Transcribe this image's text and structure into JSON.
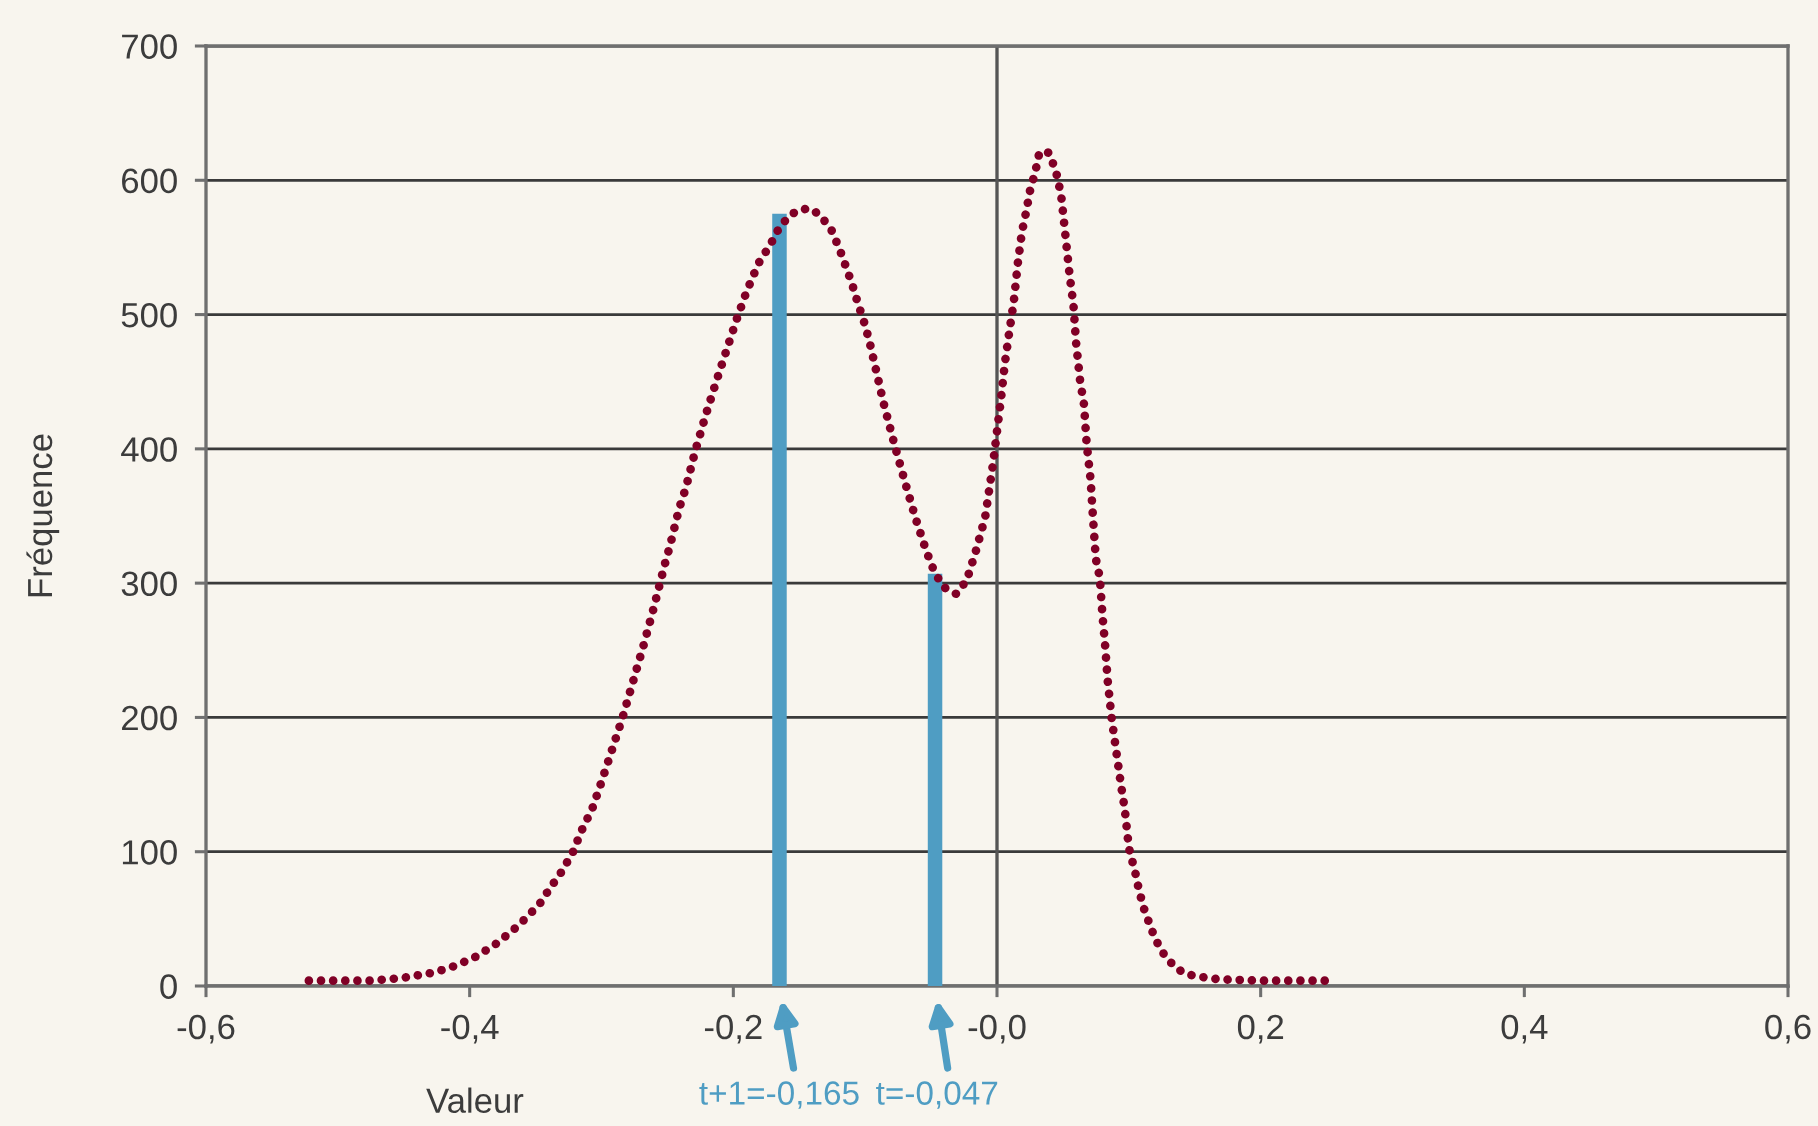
{
  "chart_data": {
    "type": "line",
    "xlabel": "Valeur",
    "ylabel": "Fréquence",
    "xlim": [
      -0.6,
      0.6
    ],
    "xticks": [
      {
        "value": -0.6,
        "label": "-0,6"
      },
      {
        "value": -0.4,
        "label": "-0,4"
      },
      {
        "value": -0.2,
        "label": "-0,2"
      },
      {
        "value": 0,
        "label": "-0,0"
      },
      {
        "value": 0.2,
        "label": "0,2"
      },
      {
        "value": 0.4,
        "label": "0,4"
      },
      {
        "value": 0.6,
        "label": "0,6"
      }
    ],
    "ylim": [
      0,
      700
    ],
    "yticks": [
      0,
      100,
      200,
      300,
      400,
      500,
      600,
      700
    ],
    "grid": "y",
    "ref_lines": [
      {
        "axis": "x",
        "value": 0,
        "color": "#555555"
      }
    ],
    "series": [
      {
        "type": "bar",
        "color": "#4f9dc3",
        "x": [
          -0.165,
          -0.047
        ],
        "values": [
          575,
          307
        ]
      },
      {
        "color": "#800026",
        "line_style": "dotted",
        "x": [
          -0.522,
          -0.474,
          -0.451,
          -0.427,
          -0.411,
          -0.395,
          -0.379,
          -0.363,
          -0.347,
          -0.339,
          -0.331,
          -0.322,
          -0.315,
          -0.307,
          -0.3,
          -0.292,
          -0.284,
          -0.276,
          -0.268,
          -0.26,
          -0.252,
          -0.248,
          -0.241,
          -0.236,
          -0.229,
          -0.221,
          -0.213,
          -0.205,
          -0.198,
          -0.19,
          -0.181,
          -0.172,
          -0.165,
          -0.157,
          -0.15,
          -0.142,
          -0.134,
          -0.125,
          -0.118,
          -0.11,
          -0.106,
          -0.101,
          -0.097,
          -0.093,
          -0.086,
          -0.078,
          -0.07,
          -0.062,
          -0.054,
          -0.047,
          -0.039,
          -0.031,
          -0.023,
          -0.016,
          -0.009,
          -0.003,
          0.003,
          0.006,
          0.009,
          0.011,
          0.013,
          0.016,
          0.019,
          0.022,
          0.025,
          0.029,
          0.032,
          0.036,
          0.04,
          0.046,
          0.049,
          0.052,
          0.055,
          0.058,
          0.06,
          0.063,
          0.066,
          0.068,
          0.071,
          0.073,
          0.075,
          0.078,
          0.08,
          0.082,
          0.084,
          0.087,
          0.09,
          0.094,
          0.097,
          0.1,
          0.105,
          0.108,
          0.112,
          0.12,
          0.127,
          0.135,
          0.143,
          0.153,
          0.168,
          0.198,
          0.255
        ],
        "values": [
          4,
          4,
          6,
          10,
          15,
          22,
          32,
          45,
          61,
          73,
          84,
          99,
          116,
          132,
          152,
          176,
          200,
          227,
          254,
          283,
          314,
          328,
          356,
          371,
          398,
          425,
          450,
          474,
          495,
          517,
          538,
          552,
          565,
          574,
          578,
          579,
          574,
          562,
          545,
          523,
          510,
          495,
          481,
          464,
          434,
          404,
          376,
          349,
          325,
          307,
          296,
          292,
          302,
          324,
          349,
          389,
          437,
          464,
          485,
          498,
          512,
          540,
          562,
          576,
          592,
          606,
          620,
          622,
          620,
          602,
          586,
          558,
          530,
          507,
          479,
          451,
          433,
          404,
          377,
          346,
          318,
          304,
          276,
          254,
          227,
          199,
          178,
          150,
          131,
          103,
          84,
          70,
          56,
          35,
          23,
          14,
          9,
          7,
          5,
          4,
          4
        ]
      }
    ],
    "annotations": [
      {
        "text": "t+1=-0,165",
        "x": -0.165,
        "y": 0
      },
      {
        "text": "t=-0,047",
        "x": -0.047,
        "y": 0
      }
    ]
  }
}
